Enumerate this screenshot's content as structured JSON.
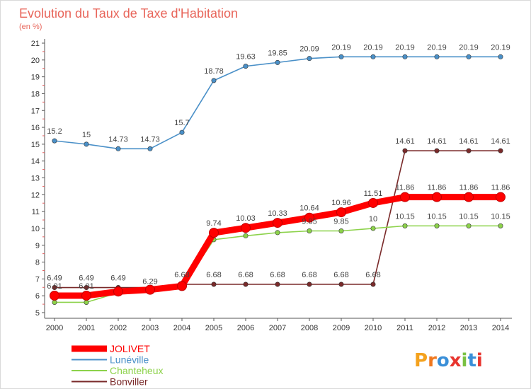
{
  "chart_data": {
    "type": "line",
    "title": "Evolution du Taux de Taxe d'Habitation",
    "ylabel": "(en %)",
    "xlabel": "",
    "x": [
      2000,
      2001,
      2002,
      2003,
      2004,
      2005,
      2006,
      2007,
      2008,
      2009,
      2010,
      2011,
      2012,
      2013,
      2014
    ],
    "ylim": [
      5,
      21
    ],
    "y_ticks": [
      5,
      6,
      7,
      8,
      9,
      10,
      11,
      12,
      13,
      14,
      15,
      16,
      17,
      18,
      19,
      20,
      21
    ],
    "grid": false,
    "legend_position": "bottom-left",
    "series": [
      {
        "name": "JOLIVET",
        "color": "#ff0000",
        "values": [
          6.01,
          6.01,
          6.25,
          6.36,
          6.58,
          9.74,
          10.03,
          10.33,
          10.64,
          10.96,
          11.51,
          11.86,
          11.86,
          11.86,
          11.86
        ],
        "labels": [
          "6.01",
          "6.01",
          "",
          "",
          "",
          "9.74",
          "10.03",
          "10.33",
          "10.64",
          "10.96",
          "11.51",
          "11.86",
          "11.86",
          "11.86",
          "11.86"
        ]
      },
      {
        "name": "Lunéville",
        "color": "#4a90c8",
        "values": [
          15.2,
          15,
          14.73,
          14.73,
          15.7,
          18.78,
          19.63,
          19.85,
          20.09,
          20.19,
          20.19,
          20.19,
          20.19,
          20.19,
          20.19
        ],
        "labels": [
          "15.2",
          "15",
          "14.73",
          "14.73",
          "15.7",
          "18.78",
          "19.63",
          "19.85",
          "20.09",
          "20.19",
          "20.19",
          "20.19",
          "20.19",
          "20.19",
          "20.19"
        ]
      },
      {
        "name": "Chanteheux",
        "color": "#8cd24a",
        "values": [
          5.61,
          5.61,
          6.18,
          6.29,
          6.5,
          9.33,
          9.56,
          9.75,
          9.85,
          9.85,
          10,
          10.15,
          10.15,
          10.15,
          10.15
        ],
        "labels": [
          "",
          "",
          "",
          "6.29",
          "",
          "",
          "",
          "",
          "9.85",
          "9.85",
          "10",
          "10.15",
          "10.15",
          "10.15",
          "10.15"
        ]
      },
      {
        "name": "Bonviller",
        "color": "#7a2a2a",
        "values": [
          6.49,
          6.49,
          6.49,
          6.49,
          6.68,
          6.68,
          6.68,
          6.68,
          6.68,
          6.68,
          6.68,
          14.61,
          14.61,
          14.61,
          14.61
        ],
        "labels": [
          "6.49",
          "6.49",
          "6.49",
          "",
          "6.68",
          "6.68",
          "6.68",
          "6.68",
          "6.68",
          "6.68",
          "6.68",
          "14.61",
          "14.61",
          "14.61",
          "14.61"
        ]
      }
    ]
  },
  "logo": {
    "text": "Proxiti",
    "letter_colors": [
      "#f4a21e",
      "#f0781e",
      "#3a8fd8",
      "#e8342e",
      "#7ac142",
      "#3a8fd8",
      "#e8342e"
    ]
  }
}
